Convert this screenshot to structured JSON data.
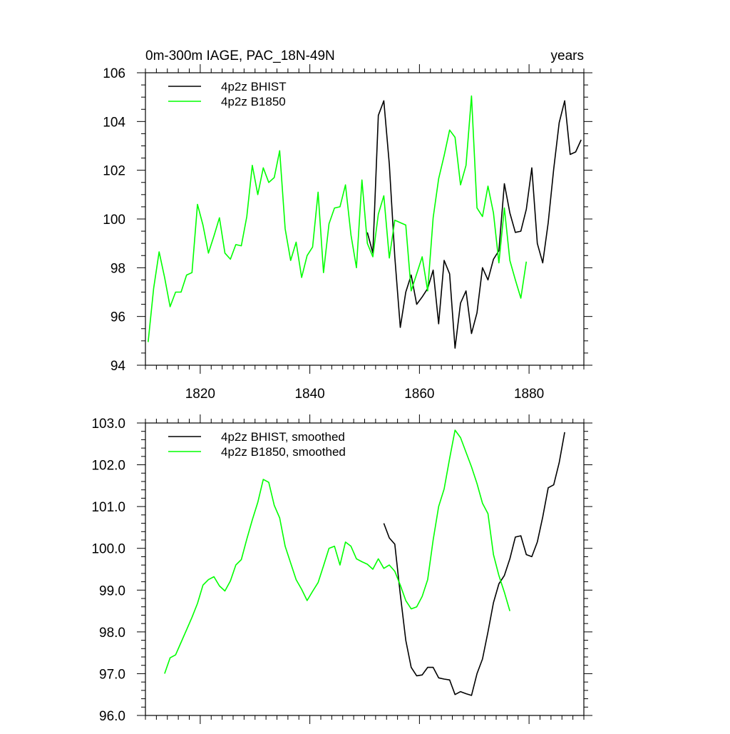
{
  "chart_data": [
    {
      "type": "line",
      "title": "0m-300m IAGE, PAC_18N-49N",
      "title_right": "years",
      "xlim": [
        1810,
        1890
      ],
      "ylim": [
        94,
        106
      ],
      "xticks": [
        1820,
        1840,
        1860,
        1880
      ],
      "xtick_labels": [
        "1820",
        "1840",
        "1860",
        "1880"
      ],
      "yticks": [
        94,
        96,
        98,
        100,
        102,
        104,
        106
      ],
      "ytick_labels": [
        "94",
        "96",
        "98",
        "100",
        "102",
        "104",
        "106"
      ],
      "legend_position": "top-left",
      "series": [
        {
          "name": "4p2z BHIST",
          "color": "#000000",
          "x": [
            1850.5,
            1851.5,
            1852.5,
            1853.5,
            1854.5,
            1855.5,
            1856.5,
            1857.5,
            1858.5,
            1859.5,
            1860.5,
            1861.5,
            1862.5,
            1863.5,
            1864.5,
            1865.5,
            1866.5,
            1867.5,
            1868.5,
            1869.5,
            1870.5,
            1871.5,
            1872.5,
            1873.5,
            1874.5,
            1875.5,
            1876.5,
            1877.5,
            1878.5,
            1879.5,
            1880.5,
            1881.5,
            1882.5,
            1883.5,
            1884.5,
            1885.5,
            1886.5,
            1887.5,
            1888.5,
            1889.5
          ],
          "values": [
            99.45,
            98.6,
            104.25,
            104.85,
            102.25,
            98.45,
            95.55,
            97.0,
            97.7,
            96.5,
            96.8,
            97.15,
            97.9,
            95.7,
            98.3,
            97.75,
            94.7,
            96.55,
            97.05,
            95.3,
            96.15,
            98.0,
            97.5,
            98.35,
            98.7,
            101.45,
            100.25,
            99.45,
            99.5,
            100.4,
            102.1,
            99.0,
            98.2,
            99.85,
            102.05,
            103.95,
            104.85,
            102.65,
            102.75,
            103.25
          ]
        },
        {
          "name": "4p2z B1850",
          "color": "#00ff00",
          "x": [
            1810.5,
            1811.5,
            1812.5,
            1813.5,
            1814.5,
            1815.5,
            1816.5,
            1817.5,
            1818.5,
            1819.5,
            1820.5,
            1821.5,
            1822.5,
            1823.5,
            1824.5,
            1825.5,
            1826.5,
            1827.5,
            1828.5,
            1829.5,
            1830.5,
            1831.5,
            1832.5,
            1833.5,
            1834.5,
            1835.5,
            1836.5,
            1837.5,
            1838.5,
            1839.5,
            1840.5,
            1841.5,
            1842.5,
            1843.5,
            1844.5,
            1845.5,
            1846.5,
            1847.5,
            1848.5,
            1849.5,
            1850.5,
            1851.5,
            1852.5,
            1853.5,
            1854.5,
            1855.5,
            1856.5,
            1857.5,
            1858.5,
            1859.5,
            1860.5,
            1861.5,
            1862.5,
            1863.5,
            1864.5,
            1865.5,
            1866.5,
            1867.5,
            1868.5,
            1869.5,
            1870.5,
            1871.5,
            1872.5,
            1873.5,
            1874.5,
            1875.5,
            1876.5,
            1877.5,
            1878.5,
            1879.5
          ],
          "values": [
            94.95,
            97.15,
            98.65,
            97.6,
            96.4,
            97.0,
            97.0,
            97.7,
            97.8,
            100.6,
            99.75,
            98.6,
            99.3,
            100.05,
            98.6,
            98.35,
            98.95,
            98.9,
            100.1,
            102.2,
            101.0,
            102.1,
            101.5,
            101.7,
            102.8,
            99.6,
            98.3,
            99.05,
            97.6,
            98.5,
            98.85,
            101.1,
            97.8,
            99.8,
            100.45,
            100.5,
            101.4,
            99.35,
            98.0,
            101.6,
            99.0,
            98.45,
            100.2,
            100.95,
            98.4,
            99.95,
            99.85,
            99.75,
            97.05,
            97.75,
            98.45,
            97.05,
            100.05,
            101.65,
            102.6,
            103.65,
            103.35,
            101.4,
            102.2,
            105.05,
            100.45,
            100.1,
            101.35,
            100.25,
            98.2,
            100.45,
            98.3,
            97.5,
            96.75,
            98.25
          ]
        }
      ]
    },
    {
      "type": "line",
      "title": "",
      "xlim": [
        1810,
        1890
      ],
      "ylim": [
        96.0,
        103.0
      ],
      "xticks": [
        1820,
        1840,
        1860,
        1880
      ],
      "xtick_labels": [],
      "yticks": [
        96,
        97,
        98,
        99,
        100,
        101,
        102,
        103
      ],
      "ytick_labels": [
        "96.0",
        "97.0",
        "98.0",
        "99.0",
        "100.0",
        "101.0",
        "102.0",
        "103.0"
      ],
      "legend_position": "top-left",
      "series": [
        {
          "name": "4p2z BHIST, smoothed",
          "color": "#000000",
          "x": [
            1853.5,
            1854.5,
            1855.5,
            1856.5,
            1857.5,
            1858.5,
            1859.5,
            1860.5,
            1861.5,
            1862.5,
            1863.5,
            1864.5,
            1865.5,
            1866.5,
            1867.5,
            1868.5,
            1869.5,
            1870.5,
            1871.5,
            1872.5,
            1873.5,
            1874.5,
            1875.5,
            1876.5,
            1877.5,
            1878.5,
            1879.5,
            1880.5,
            1881.5,
            1882.5,
            1883.5,
            1884.5,
            1885.5,
            1886.5
          ],
          "values": [
            100.6,
            100.25,
            100.1,
            98.9,
            97.8,
            97.15,
            96.95,
            96.97,
            97.15,
            97.15,
            96.9,
            96.87,
            96.85,
            96.5,
            96.57,
            96.52,
            96.48,
            97.0,
            97.35,
            98.0,
            98.7,
            99.15,
            99.35,
            99.75,
            100.27,
            100.3,
            99.85,
            99.8,
            100.15,
            100.75,
            101.45,
            101.52,
            102.05,
            102.78
          ]
        },
        {
          "name": "4p2z B1850, smoothed",
          "color": "#00ff00",
          "x": [
            1813.5,
            1814.5,
            1815.5,
            1816.5,
            1817.5,
            1818.5,
            1819.5,
            1820.5,
            1821.5,
            1822.5,
            1823.5,
            1824.5,
            1825.5,
            1826.5,
            1827.5,
            1828.5,
            1829.5,
            1830.5,
            1831.5,
            1832.5,
            1833.5,
            1834.5,
            1835.5,
            1836.5,
            1837.5,
            1838.5,
            1839.5,
            1840.5,
            1841.5,
            1842.5,
            1843.5,
            1844.5,
            1845.5,
            1846.5,
            1847.5,
            1848.5,
            1849.5,
            1850.5,
            1851.5,
            1852.5,
            1853.5,
            1854.5,
            1855.5,
            1856.5,
            1857.5,
            1858.5,
            1859.5,
            1860.5,
            1861.5,
            1862.5,
            1863.5,
            1864.5,
            1865.5,
            1866.5,
            1867.5,
            1868.5,
            1869.5,
            1870.5,
            1871.5,
            1872.5,
            1873.5,
            1874.5,
            1875.5,
            1876.5
          ],
          "values": [
            97.0,
            97.38,
            97.45,
            97.75,
            98.05,
            98.35,
            98.68,
            99.12,
            99.25,
            99.32,
            99.1,
            98.98,
            99.22,
            99.6,
            99.73,
            100.22,
            100.68,
            101.1,
            101.65,
            101.58,
            101.03,
            100.73,
            100.05,
            99.65,
            99.25,
            99.02,
            98.75,
            98.97,
            99.18,
            99.58,
            100.0,
            100.05,
            99.6,
            100.15,
            100.05,
            99.75,
            99.68,
            99.62,
            99.5,
            99.75,
            99.52,
            99.6,
            99.45,
            99.12,
            98.75,
            98.55,
            98.6,
            98.85,
            99.25,
            100.2,
            101.0,
            101.42,
            102.15,
            102.83,
            102.65,
            102.3,
            101.95,
            101.55,
            101.08,
            100.83,
            99.85,
            99.35,
            98.95,
            98.5
          ]
        }
      ]
    }
  ]
}
